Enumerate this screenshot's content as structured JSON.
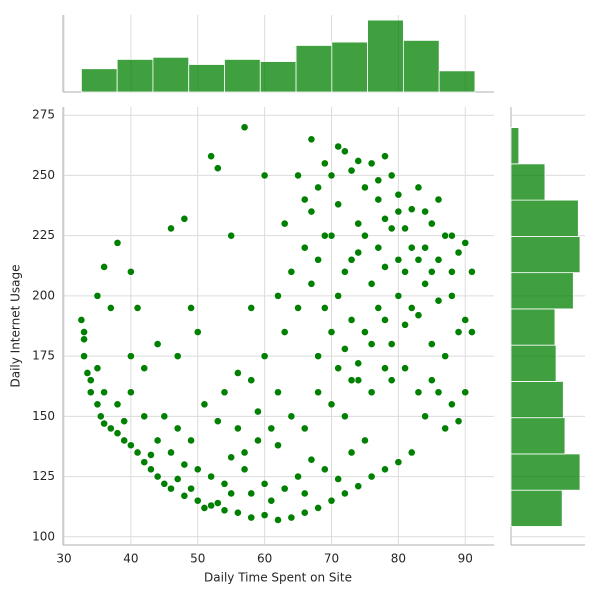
{
  "chart_data": {
    "type": "scatter",
    "xlabel": "Daily Time Spent on Site",
    "ylabel": "Daily Internet Usage",
    "color": "#008000",
    "grid": true,
    "xlim": [
      29.85,
      94.3
    ],
    "ylim": [
      96.6,
      278.4
    ],
    "xticks": [
      30,
      40,
      50,
      60,
      70,
      80,
      90
    ],
    "yticks": [
      100,
      125,
      150,
      175,
      200,
      225,
      250,
      275
    ],
    "x": [
      32.6,
      33,
      33,
      33.5,
      34,
      35,
      35.5,
      36,
      37,
      38,
      39,
      40,
      41,
      42,
      43,
      44,
      45,
      46,
      48,
      50,
      52,
      54,
      56,
      58,
      60,
      62,
      64,
      66,
      68,
      70,
      72,
      74,
      76,
      78,
      80,
      82,
      38,
      40,
      42,
      44,
      46,
      48,
      50,
      52,
      54,
      55,
      57,
      58,
      60,
      61,
      63,
      65,
      66,
      67,
      69,
      71,
      73,
      75,
      45,
      47,
      49,
      51,
      53,
      56,
      59,
      62,
      64,
      66,
      68,
      70,
      72,
      74,
      76,
      78,
      84,
      86,
      88,
      90,
      35,
      36,
      38,
      40,
      41,
      42,
      44,
      37,
      46,
      48,
      49,
      52,
      53,
      57,
      60,
      55,
      58,
      62,
      63,
      65,
      35,
      40,
      47,
      50,
      54,
      56,
      66,
      67,
      68,
      69,
      70,
      71,
      72,
      73,
      74,
      75,
      76,
      77,
      78,
      79,
      80,
      81,
      82,
      83,
      84,
      85,
      86,
      87,
      88,
      89,
      90,
      91,
      66,
      68,
      70,
      72,
      74,
      76,
      78,
      80,
      82,
      84,
      86,
      88,
      90,
      91,
      67,
      69,
      71,
      73,
      75,
      77,
      79,
      81,
      83,
      85,
      87,
      89,
      70,
      72,
      74,
      76,
      78,
      80,
      82,
      84,
      86,
      88,
      75,
      77,
      79,
      81,
      83,
      85,
      67,
      71,
      74,
      78,
      77,
      80,
      69,
      73,
      65,
      64,
      63,
      68,
      71,
      73,
      79,
      81,
      83,
      85,
      87,
      89,
      62,
      60,
      58,
      61,
      59,
      57,
      55,
      53,
      51,
      49,
      47,
      43,
      39,
      36,
      34,
      33
    ],
    "values": [
      190,
      182,
      175,
      168,
      160,
      155,
      150,
      147,
      145,
      143,
      140,
      138,
      135,
      131,
      128,
      125,
      122,
      120,
      117,
      115,
      113,
      111,
      110,
      108,
      109,
      107,
      108,
      110,
      112,
      115,
      118,
      121,
      125,
      128,
      131,
      135,
      155,
      160,
      150,
      140,
      135,
      130,
      128,
      125,
      122,
      133,
      128,
      118,
      122,
      115,
      120,
      125,
      118,
      132,
      128,
      124,
      135,
      140,
      150,
      145,
      140,
      155,
      148,
      145,
      140,
      138,
      150,
      145,
      160,
      155,
      150,
      165,
      160,
      170,
      150,
      160,
      155,
      160,
      200,
      212,
      222,
      210,
      195,
      170,
      180,
      195,
      228,
      232,
      195,
      258,
      253,
      270,
      250,
      225,
      195,
      200,
      185,
      250,
      170,
      175,
      175,
      185,
      160,
      168,
      240,
      235,
      245,
      255,
      250,
      238,
      260,
      252,
      230,
      245,
      255,
      240,
      232,
      250,
      242,
      228,
      236,
      245,
      220,
      230,
      215,
      225,
      210,
      218,
      222,
      210,
      220,
      215,
      225,
      210,
      218,
      205,
      212,
      200,
      195,
      205,
      198,
      200,
      190,
      185,
      205,
      195,
      200,
      190,
      185,
      195,
      180,
      188,
      192,
      180,
      175,
      185,
      185,
      178,
      172,
      180,
      190,
      215,
      220,
      235,
      240,
      225,
      225,
      220,
      228,
      210,
      215,
      210,
      265,
      262,
      256,
      258,
      248,
      235,
      225,
      215,
      195,
      210,
      230,
      175,
      170,
      165,
      165,
      170,
      160,
      165,
      145,
      148,
      160,
      175,
      165,
      145,
      152,
      135,
      118,
      114,
      112,
      120,
      124,
      134,
      148,
      160,
      165,
      185
    ],
    "marginal_x": {
      "type": "histogram",
      "color": "#008000",
      "bins": [
        32.6,
        37.95,
        43.3,
        48.65,
        54.0,
        59.35,
        64.7,
        70.05,
        75.4,
        80.75,
        86.1,
        91.45
      ],
      "counts": [
        55,
        77,
        82,
        65,
        77,
        72,
        110,
        118,
        170,
        122,
        50
      ],
      "ylim": [
        0,
        182
      ]
    },
    "marginal_y": {
      "type": "histogram",
      "color": "#008000",
      "bins": [
        104.3,
        119.35,
        134.4,
        149.45,
        164.5,
        179.55,
        194.6,
        209.65,
        224.7,
        239.75,
        254.8,
        269.85
      ],
      "counts": [
        92,
        124,
        97,
        94,
        81,
        79,
        112,
        124,
        121,
        61,
        14
      ],
      "xlim": [
        0,
        133
      ]
    }
  }
}
